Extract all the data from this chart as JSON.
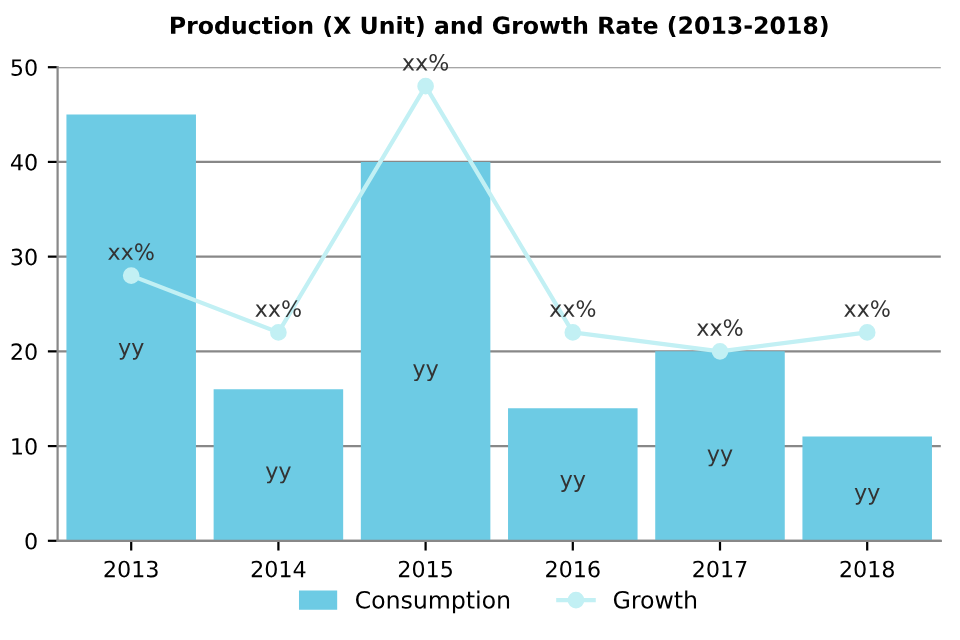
{
  "chart_data": {
    "type": "bar",
    "title": "Production (X Unit) and Growth Rate (2013-2018)",
    "categories": [
      "2013",
      "2014",
      "2015",
      "2016",
      "2017",
      "2018"
    ],
    "series": [
      {
        "name": "Consumption",
        "color": "#6dcbe4",
        "values": [
          45,
          16,
          40,
          14,
          20,
          11
        ],
        "value_labels": [
          "yy",
          "yy",
          "yy",
          "yy",
          "yy",
          "yy"
        ]
      },
      {
        "name": "Growth",
        "type": "line",
        "color": "#c2f0f4",
        "values": [
          28,
          22,
          48,
          22,
          20,
          22
        ],
        "value_labels": [
          "xx%",
          "xx%",
          "xx%",
          "xx%",
          "xx%",
          "xx%"
        ],
        "marker": "circle"
      }
    ],
    "ylim": [
      0,
      50
    ],
    "yticks": [
      0,
      10,
      20,
      30,
      40,
      50
    ],
    "grid": "y",
    "legend": "bottom"
  }
}
